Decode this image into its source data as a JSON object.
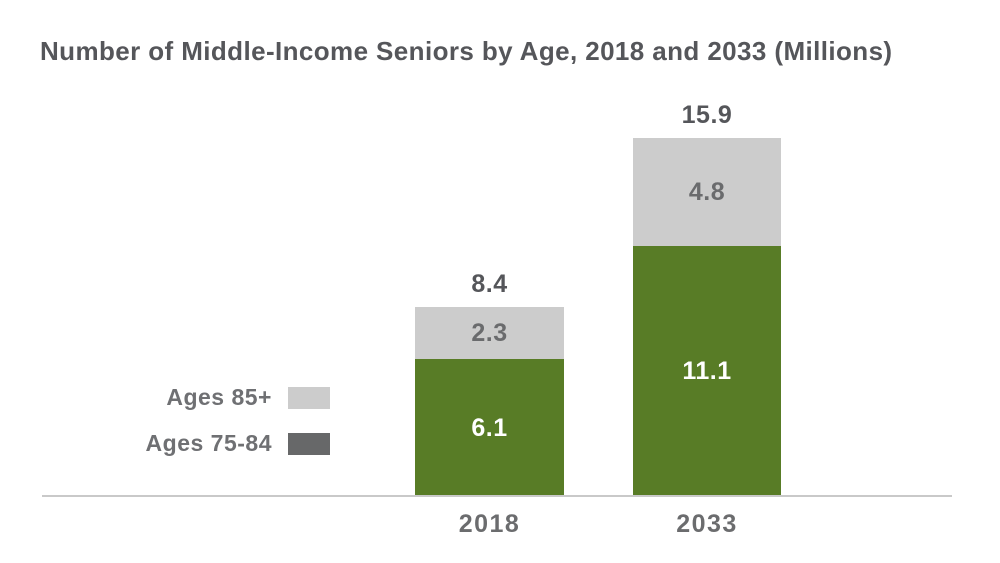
{
  "title": "Number of Middle-Income Seniors by Age, 2018 and 2033 (Millions)",
  "colors": {
    "green_segment": "#587c26",
    "light_gray_segment": "#cccccc",
    "dark_gray_swatch": "#676869",
    "title_text": "#55565a",
    "axis_label_text": "#6b6c6e",
    "legend_text": "#6f7073",
    "axis_line": "#c9c9c9"
  },
  "legend": {
    "items": [
      {
        "label": "Ages 85+",
        "color": "#cccccc"
      },
      {
        "label": "Ages 75-84",
        "color": "#676869"
      }
    ]
  },
  "chart_data": {
    "type": "bar",
    "stacked": true,
    "title": "Number of Middle-Income Seniors by Age, 2018 and 2033 (Millions)",
    "unit": "Millions",
    "categories": [
      "2018",
      "2033"
    ],
    "series": [
      {
        "name": "Ages 75-84",
        "values": [
          6.1,
          11.1
        ],
        "color": "#587c26",
        "label_color": "#ffffff"
      },
      {
        "name": "Ages 85+",
        "values": [
          2.3,
          4.8
        ],
        "color": "#cccccc",
        "label_color": "#6a6b6d"
      }
    ],
    "totals": [
      8.4,
      15.9
    ],
    "xlabel": "",
    "ylabel": "",
    "grid": false,
    "legend_position": "left-middle",
    "baseline_only_axis": true
  }
}
